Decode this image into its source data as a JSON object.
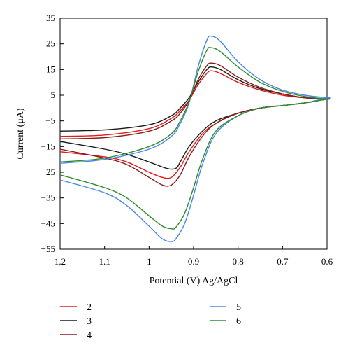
{
  "chart_data": {
    "type": "line",
    "xlabel": "Potential (V) Ag/AgCl",
    "ylabel": "Current (μA)",
    "xlim": [
      1.2,
      0.6
    ],
    "ylim": [
      -55,
      35
    ],
    "x_reversed": true,
    "x_ticks": [
      1.2,
      1.1,
      1.0,
      0.9,
      0.8,
      0.7,
      0.6
    ],
    "x_tick_labels": [
      "1.2",
      "1.1",
      "1",
      "0.9",
      "0.8",
      "0.7",
      "0.6"
    ],
    "y_ticks": [
      35,
      25,
      15,
      5,
      -5,
      -15,
      -25,
      -35,
      -45,
      -55
    ],
    "y_tick_labels": [
      "35",
      "25",
      "15",
      "5",
      "−5",
      "−15",
      "−25",
      "−35",
      "−45",
      "−55"
    ],
    "grid": false,
    "legend_position": "bottom",
    "series": [
      {
        "name": "2",
        "color": "#e31a1c",
        "forward": {
          "x": [
            1.2,
            1.1,
            1.0,
            0.95,
            0.93,
            0.91,
            0.89,
            0.87,
            0.86,
            0.84,
            0.8,
            0.75,
            0.7,
            0.65,
            0.6
          ],
          "y": [
            -11,
            -10.5,
            -8,
            -4,
            -1,
            3,
            9,
            13.5,
            14.5,
            13.5,
            10,
            7,
            5,
            4,
            3.5
          ]
        },
        "reverse": {
          "x": [
            0.6,
            0.65,
            0.7,
            0.75,
            0.8,
            0.85,
            0.88,
            0.91,
            0.93,
            0.95,
            0.97,
            1.0,
            1.05,
            1.1,
            1.2
          ],
          "y": [
            3.5,
            2,
            1,
            0,
            -2,
            -6,
            -10,
            -17,
            -23,
            -27,
            -27,
            -25,
            -21,
            -19,
            -17
          ]
        }
      },
      {
        "name": "3",
        "color": "#1a1a1a",
        "forward": {
          "x": [
            1.2,
            1.1,
            1.0,
            0.95,
            0.93,
            0.91,
            0.89,
            0.87,
            0.86,
            0.84,
            0.8,
            0.75,
            0.7,
            0.65,
            0.6
          ],
          "y": [
            -9,
            -8.5,
            -6.5,
            -3,
            0,
            4,
            10,
            15,
            16,
            15,
            11,
            7.5,
            5.5,
            4,
            3.5
          ]
        },
        "reverse": {
          "x": [
            0.6,
            0.65,
            0.7,
            0.75,
            0.8,
            0.85,
            0.88,
            0.91,
            0.93,
            0.94,
            0.96,
            1.0,
            1.05,
            1.1,
            1.2
          ],
          "y": [
            3.5,
            2,
            1,
            0,
            -2,
            -5,
            -9,
            -15,
            -21,
            -23.5,
            -23.5,
            -21,
            -18,
            -16,
            -13
          ]
        }
      },
      {
        "name": "4",
        "color": "#8b1a1a",
        "forward": {
          "x": [
            1.2,
            1.1,
            1.0,
            0.95,
            0.93,
            0.91,
            0.89,
            0.87,
            0.86,
            0.84,
            0.8,
            0.75,
            0.7,
            0.65,
            0.6
          ],
          "y": [
            -12,
            -11.5,
            -9,
            -5,
            -2,
            3,
            11,
            16.5,
            17.5,
            16.5,
            12,
            8,
            5.5,
            4,
            3.5
          ]
        },
        "reverse": {
          "x": [
            0.6,
            0.65,
            0.7,
            0.75,
            0.8,
            0.85,
            0.88,
            0.91,
            0.93,
            0.95,
            0.97,
            1.0,
            1.05,
            1.1,
            1.2
          ],
          "y": [
            3.5,
            2,
            1,
            0,
            -2,
            -6,
            -11,
            -19,
            -26,
            -30,
            -30,
            -27,
            -22,
            -19.5,
            -16
          ]
        }
      },
      {
        "name": "5",
        "color": "#4a86e8",
        "forward": {
          "x": [
            1.2,
            1.1,
            1.0,
            0.95,
            0.93,
            0.91,
            0.89,
            0.87,
            0.86,
            0.84,
            0.8,
            0.75,
            0.7,
            0.65,
            0.6
          ],
          "y": [
            -21.5,
            -20,
            -16,
            -11,
            -6,
            2,
            16,
            26.5,
            28,
            26,
            18,
            11,
            7,
            5,
            4
          ]
        },
        "reverse": {
          "x": [
            0.6,
            0.65,
            0.7,
            0.75,
            0.8,
            0.85,
            0.88,
            0.9,
            0.92,
            0.94,
            0.95,
            0.97,
            1.0,
            1.05,
            1.1,
            1.2
          ],
          "y": [
            4,
            2,
            1,
            0,
            -3,
            -10,
            -22,
            -34,
            -45,
            -51,
            -52,
            -51,
            -46,
            -38,
            -33,
            -28
          ]
        }
      },
      {
        "name": "6",
        "color": "#2e8b2e",
        "forward": {
          "x": [
            1.2,
            1.1,
            1.0,
            0.95,
            0.93,
            0.91,
            0.89,
            0.87,
            0.86,
            0.84,
            0.8,
            0.75,
            0.7,
            0.65,
            0.6
          ],
          "y": [
            -21,
            -19.5,
            -15,
            -10,
            -5,
            2.5,
            14,
            22.5,
            23.5,
            22,
            16,
            10,
            6.5,
            4.5,
            3.5
          ]
        },
        "reverse": {
          "x": [
            0.6,
            0.65,
            0.7,
            0.75,
            0.8,
            0.85,
            0.88,
            0.9,
            0.92,
            0.94,
            0.95,
            0.97,
            1.0,
            1.05,
            1.1,
            1.2
          ],
          "y": [
            3.5,
            2,
            1,
            0,
            -3,
            -9,
            -20,
            -31,
            -41,
            -46.5,
            -47,
            -46,
            -42,
            -35,
            -31,
            -26
          ]
        }
      }
    ]
  }
}
